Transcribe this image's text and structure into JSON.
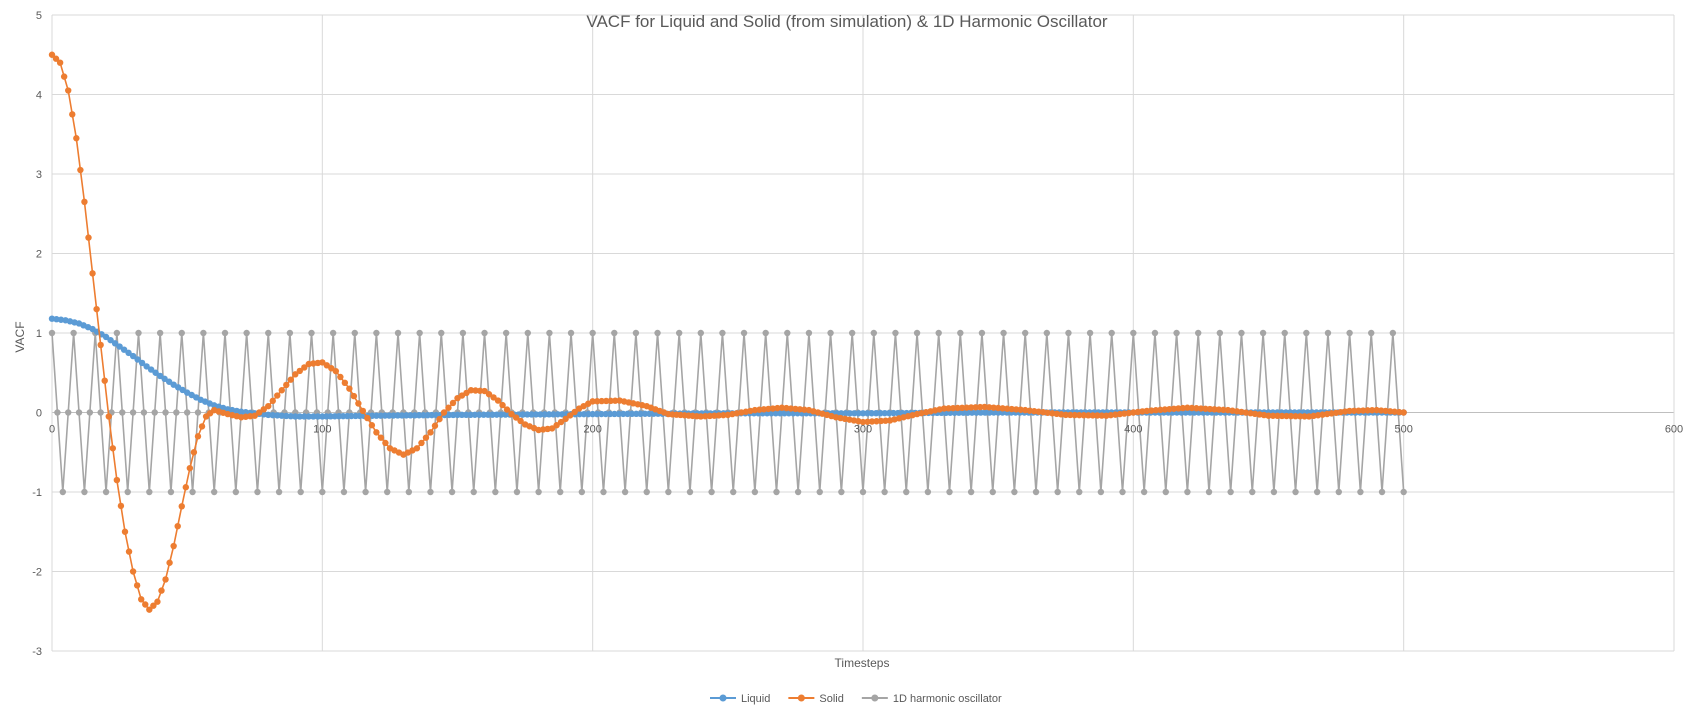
{
  "chart_data": {
    "type": "line",
    "title": "VACF for Liquid and Solid (from simulation) & 1D Harmonic Oscillator",
    "xlabel": "Timesteps",
    "ylabel": "VACF",
    "xlim": [
      0,
      600
    ],
    "ylim": [
      -3,
      5
    ],
    "x_ticks": [
      0,
      100,
      200,
      300,
      400,
      500,
      600
    ],
    "y_ticks": [
      -3,
      -2,
      -1,
      0,
      1,
      2,
      3,
      4,
      5
    ],
    "grid": true,
    "legend_position": "bottom",
    "series": [
      {
        "name": "Liquid",
        "color": "#5B9BD5",
        "x": [
          0,
          5,
          10,
          15,
          20,
          25,
          30,
          35,
          40,
          45,
          50,
          55,
          60,
          65,
          70,
          75,
          80,
          85,
          90,
          100,
          120,
          150,
          200,
          250,
          300,
          350,
          400,
          450,
          500
        ],
        "y": [
          1.18,
          1.16,
          1.12,
          1.05,
          0.95,
          0.83,
          0.71,
          0.58,
          0.46,
          0.35,
          0.25,
          0.16,
          0.09,
          0.04,
          0.01,
          -0.01,
          -0.03,
          -0.04,
          -0.05,
          -0.05,
          -0.04,
          -0.03,
          -0.02,
          -0.01,
          -0.01,
          0.0,
          0.0,
          0.0,
          0.0
        ]
      },
      {
        "name": "Solid",
        "color": "#ED7D31",
        "x": [
          0,
          3,
          6,
          9,
          12,
          15,
          18,
          21,
          24,
          27,
          30,
          33,
          36,
          39,
          42,
          45,
          48,
          51,
          54,
          57,
          60,
          65,
          70,
          75,
          80,
          85,
          90,
          95,
          100,
          105,
          110,
          115,
          120,
          125,
          130,
          135,
          140,
          145,
          150,
          155,
          160,
          165,
          170,
          175,
          180,
          185,
          190,
          195,
          200,
          210,
          220,
          228,
          240,
          250,
          260,
          270,
          280,
          290,
          300,
          310,
          320,
          330,
          345,
          360,
          375,
          390,
          405,
          420,
          435,
          450,
          465,
          480,
          490,
          500
        ],
        "y": [
          4.5,
          4.4,
          4.05,
          3.45,
          2.65,
          1.75,
          0.85,
          -0.05,
          -0.85,
          -1.5,
          -2.0,
          -2.35,
          -2.48,
          -2.38,
          -2.1,
          -1.68,
          -1.18,
          -0.7,
          -0.3,
          -0.05,
          0.03,
          -0.02,
          -0.06,
          -0.04,
          0.08,
          0.28,
          0.48,
          0.61,
          0.63,
          0.52,
          0.3,
          0.02,
          -0.25,
          -0.45,
          -0.53,
          -0.45,
          -0.25,
          0.0,
          0.18,
          0.28,
          0.27,
          0.15,
          -0.02,
          -0.15,
          -0.22,
          -0.2,
          -0.08,
          0.05,
          0.14,
          0.15,
          0.08,
          -0.02,
          -0.05,
          -0.03,
          0.03,
          0.06,
          0.03,
          -0.06,
          -0.12,
          -0.1,
          -0.02,
          0.05,
          0.07,
          0.03,
          -0.03,
          -0.04,
          0.02,
          0.06,
          0.03,
          -0.04,
          -0.05,
          0.02,
          0.03,
          0.0
        ]
      },
      {
        "name": "1D harmonic oscillator",
        "color": "#A5A5A5",
        "period": 8,
        "cycle": [
          1,
          0,
          -1,
          0
        ],
        "x_start": 0,
        "x_end": 500
      }
    ]
  }
}
